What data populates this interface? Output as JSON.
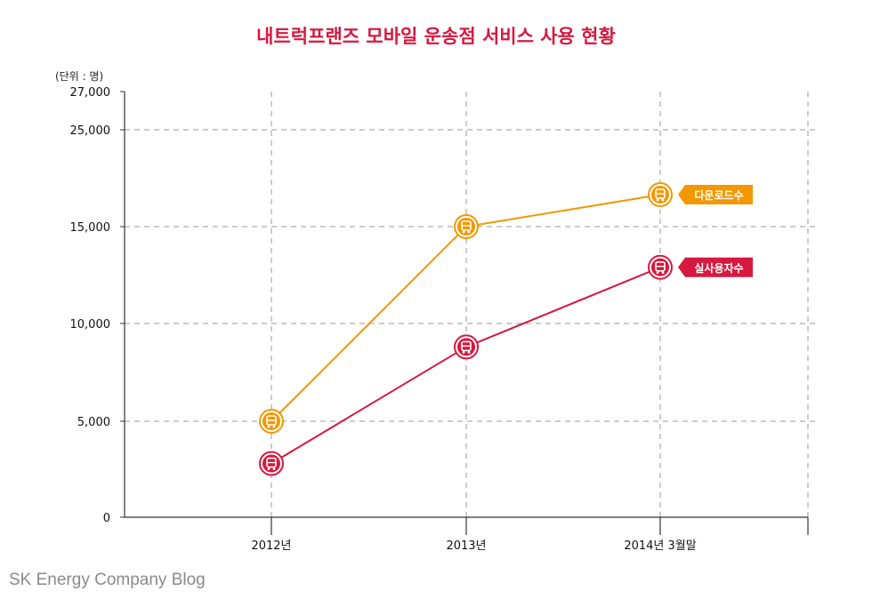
{
  "chart_data": {
    "type": "line",
    "title": "내트럭프랜즈 모바일 운송점 서비스 사용 현황",
    "unit_label": "(단위 : 명)",
    "categories": [
      "2012년",
      "2013년",
      "2014년 3월말"
    ],
    "ylim": [
      0,
      27000
    ],
    "yticks": [
      {
        "value": 0,
        "label": "0"
      },
      {
        "value": 5000,
        "label": "5,000"
      },
      {
        "value": 10000,
        "label": "10,000"
      },
      {
        "value": 15000,
        "label": "15,000"
      },
      {
        "value": 25000,
        "label": "25,000"
      },
      {
        "value": 27000,
        "label": "27,000"
      }
    ],
    "grid": true,
    "series": [
      {
        "name": "다운로드수",
        "color": "#f39800",
        "values": [
          5000,
          15000,
          18300
        ]
      },
      {
        "name": "실사용자수",
        "color": "#d7183f",
        "values": [
          2800,
          8800,
          12900
        ]
      }
    ]
  },
  "footer": {
    "source": "SK Energy Company Blog"
  }
}
